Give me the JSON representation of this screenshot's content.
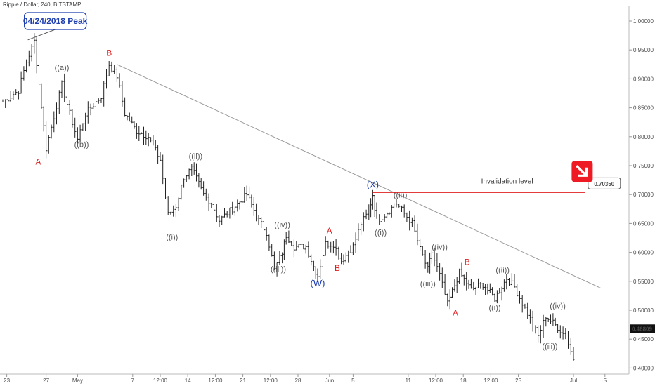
{
  "chart_data": {
    "type": "ohlc",
    "title": "Ripple / Dollar, 240, BITSTAMP",
    "xlabel": "",
    "ylabel": "",
    "ylim": [
      0.395,
      1.03
    ],
    "xlim": [
      0,
      160
    ],
    "y_ticks": [
      "1.00000",
      "0.95000",
      "0.90000",
      "0.85000",
      "0.80000",
      "0.75000",
      "0.70000",
      "0.65000",
      "0.60000",
      "0.55000",
      "0.50000",
      "0.45000",
      "0.40000"
    ],
    "y_tick_values": [
      1.0,
      0.95,
      0.9,
      0.85,
      0.8,
      0.75,
      0.7,
      0.65,
      0.6,
      0.55,
      0.5,
      0.45,
      0.4
    ],
    "x_ticks": [
      {
        "label": "23",
        "x": 1
      },
      {
        "label": "27",
        "x": 11
      },
      {
        "label": "May",
        "x": 19
      },
      {
        "label": "7",
        "x": 33
      },
      {
        "label": "12:00",
        "x": 40
      },
      {
        "label": "14",
        "x": 47
      },
      {
        "label": "12:00",
        "x": 54
      },
      {
        "label": "21",
        "x": 61
      },
      {
        "label": "12:00",
        "x": 68
      },
      {
        "label": "28",
        "x": 75
      },
      {
        "label": "Jun",
        "x": 83
      },
      {
        "label": "5",
        "x": 89
      },
      {
        "label": "11",
        "x": 103
      },
      {
        "label": "12:00",
        "x": 110
      },
      {
        "label": "18",
        "x": 117
      },
      {
        "label": "12:00",
        "x": 124
      },
      {
        "label": "25",
        "x": 131
      },
      {
        "label": "Jul",
        "x": 145
      },
      {
        "label": "5",
        "x": 153
      }
    ],
    "anchors": [
      [
        0,
        0.86
      ],
      [
        4,
        0.88
      ],
      [
        6,
        0.93
      ],
      [
        8,
        0.965
      ],
      [
        11,
        0.78
      ],
      [
        15,
        0.89
      ],
      [
        17,
        0.84
      ],
      [
        19,
        0.795
      ],
      [
        21,
        0.84
      ],
      [
        25,
        0.87
      ],
      [
        27,
        0.925
      ],
      [
        29,
        0.905
      ],
      [
        31,
        0.84
      ],
      [
        34,
        0.81
      ],
      [
        37,
        0.8
      ],
      [
        40,
        0.76
      ],
      [
        42,
        0.665
      ],
      [
        44,
        0.68
      ],
      [
        46,
        0.73
      ],
      [
        48,
        0.745
      ],
      [
        51,
        0.7
      ],
      [
        53,
        0.685
      ],
      [
        55,
        0.655
      ],
      [
        59,
        0.68
      ],
      [
        62,
        0.7
      ],
      [
        65,
        0.655
      ],
      [
        67,
        0.635
      ],
      [
        69,
        0.57
      ],
      [
        71,
        0.6
      ],
      [
        72,
        0.63
      ],
      [
        74,
        0.61
      ],
      [
        77,
        0.61
      ],
      [
        79,
        0.575
      ],
      [
        80,
        0.56
      ],
      [
        82,
        0.615
      ],
      [
        84,
        0.615
      ],
      [
        86,
        0.585
      ],
      [
        89,
        0.61
      ],
      [
        91,
        0.65
      ],
      [
        93,
        0.67
      ],
      [
        94,
        0.7
      ],
      [
        95,
        0.655
      ],
      [
        97,
        0.665
      ],
      [
        100,
        0.685
      ],
      [
        104,
        0.65
      ],
      [
        106,
        0.605
      ],
      [
        108,
        0.57
      ],
      [
        109,
        0.6
      ],
      [
        111,
        0.56
      ],
      [
        113,
        0.51
      ],
      [
        116,
        0.565
      ],
      [
        119,
        0.535
      ],
      [
        122,
        0.545
      ],
      [
        125,
        0.52
      ],
      [
        128,
        0.555
      ],
      [
        130,
        0.54
      ],
      [
        134,
        0.485
      ],
      [
        136,
        0.455
      ],
      [
        138,
        0.49
      ],
      [
        141,
        0.47
      ],
      [
        143,
        0.455
      ],
      [
        145,
        0.415
      ]
    ],
    "price_label": "0.46809",
    "price_value": 0.46809,
    "invalidation": {
      "label": "Invalidation level",
      "value": "0.70350",
      "level": 0.7035,
      "x0": 94,
      "x1": 148
    },
    "trendline": {
      "x0": 29,
      "y0": 0.925,
      "x1": 152,
      "y1": 0.538
    },
    "peak_callout": {
      "label": "04/24/2018 Peak",
      "x": 6,
      "price": 0.965
    },
    "waves": [
      {
        "label": "A",
        "x": 9,
        "price": 0.752,
        "color": "red"
      },
      {
        "label": "((a))",
        "x": 15,
        "price": 0.915,
        "color": "gray"
      },
      {
        "label": "((b))",
        "x": 20,
        "price": 0.782,
        "color": "gray"
      },
      {
        "label": "B",
        "x": 27,
        "price": 0.94,
        "color": "red"
      },
      {
        "label": "((ii))",
        "x": 49,
        "price": 0.762,
        "color": "gray"
      },
      {
        "label": "((i))",
        "x": 43,
        "price": 0.622,
        "color": "gray"
      },
      {
        "label": "((iv))",
        "x": 71,
        "price": 0.643,
        "color": "gray"
      },
      {
        "label": "((iii))",
        "x": 70,
        "price": 0.567,
        "color": "gray"
      },
      {
        "label": "A",
        "x": 83,
        "price": 0.632,
        "color": "red"
      },
      {
        "label": "B",
        "x": 85,
        "price": 0.568,
        "color": "red"
      },
      {
        "label": "(W)",
        "x": 80,
        "price": 0.541,
        "color": "blue"
      },
      {
        "label": "(X)",
        "x": 94,
        "price": 0.712,
        "color": "blue"
      },
      {
        "label": "((ii))",
        "x": 101,
        "price": 0.695,
        "color": "gray"
      },
      {
        "label": "((i))",
        "x": 96,
        "price": 0.63,
        "color": "gray"
      },
      {
        "label": "((iv))",
        "x": 111,
        "price": 0.605,
        "color": "gray"
      },
      {
        "label": "((iii))",
        "x": 108,
        "price": 0.541,
        "color": "gray"
      },
      {
        "label": "B",
        "x": 118,
        "price": 0.578,
        "color": "red"
      },
      {
        "label": "A",
        "x": 115,
        "price": 0.49,
        "color": "red"
      },
      {
        "label": "((ii))",
        "x": 127,
        "price": 0.565,
        "color": "gray"
      },
      {
        "label": "((i))",
        "x": 125,
        "price": 0.5,
        "color": "gray"
      },
      {
        "label": "((iv))",
        "x": 141,
        "price": 0.503,
        "color": "gray"
      },
      {
        "label": "((iii))",
        "x": 139,
        "price": 0.433,
        "color": "gray"
      }
    ],
    "colors": {
      "bars": "#222222",
      "trendline": "#999999",
      "invalidation": "#e02020",
      "wave_red": "#e02020",
      "wave_gray": "#555555",
      "wave_blue": "#1f3fb0",
      "callout_border": "#1f3fb0",
      "callout_text": "#1f3fb0",
      "arrow_badge": "#ee1b24"
    },
    "legend": "none",
    "grid": false
  }
}
